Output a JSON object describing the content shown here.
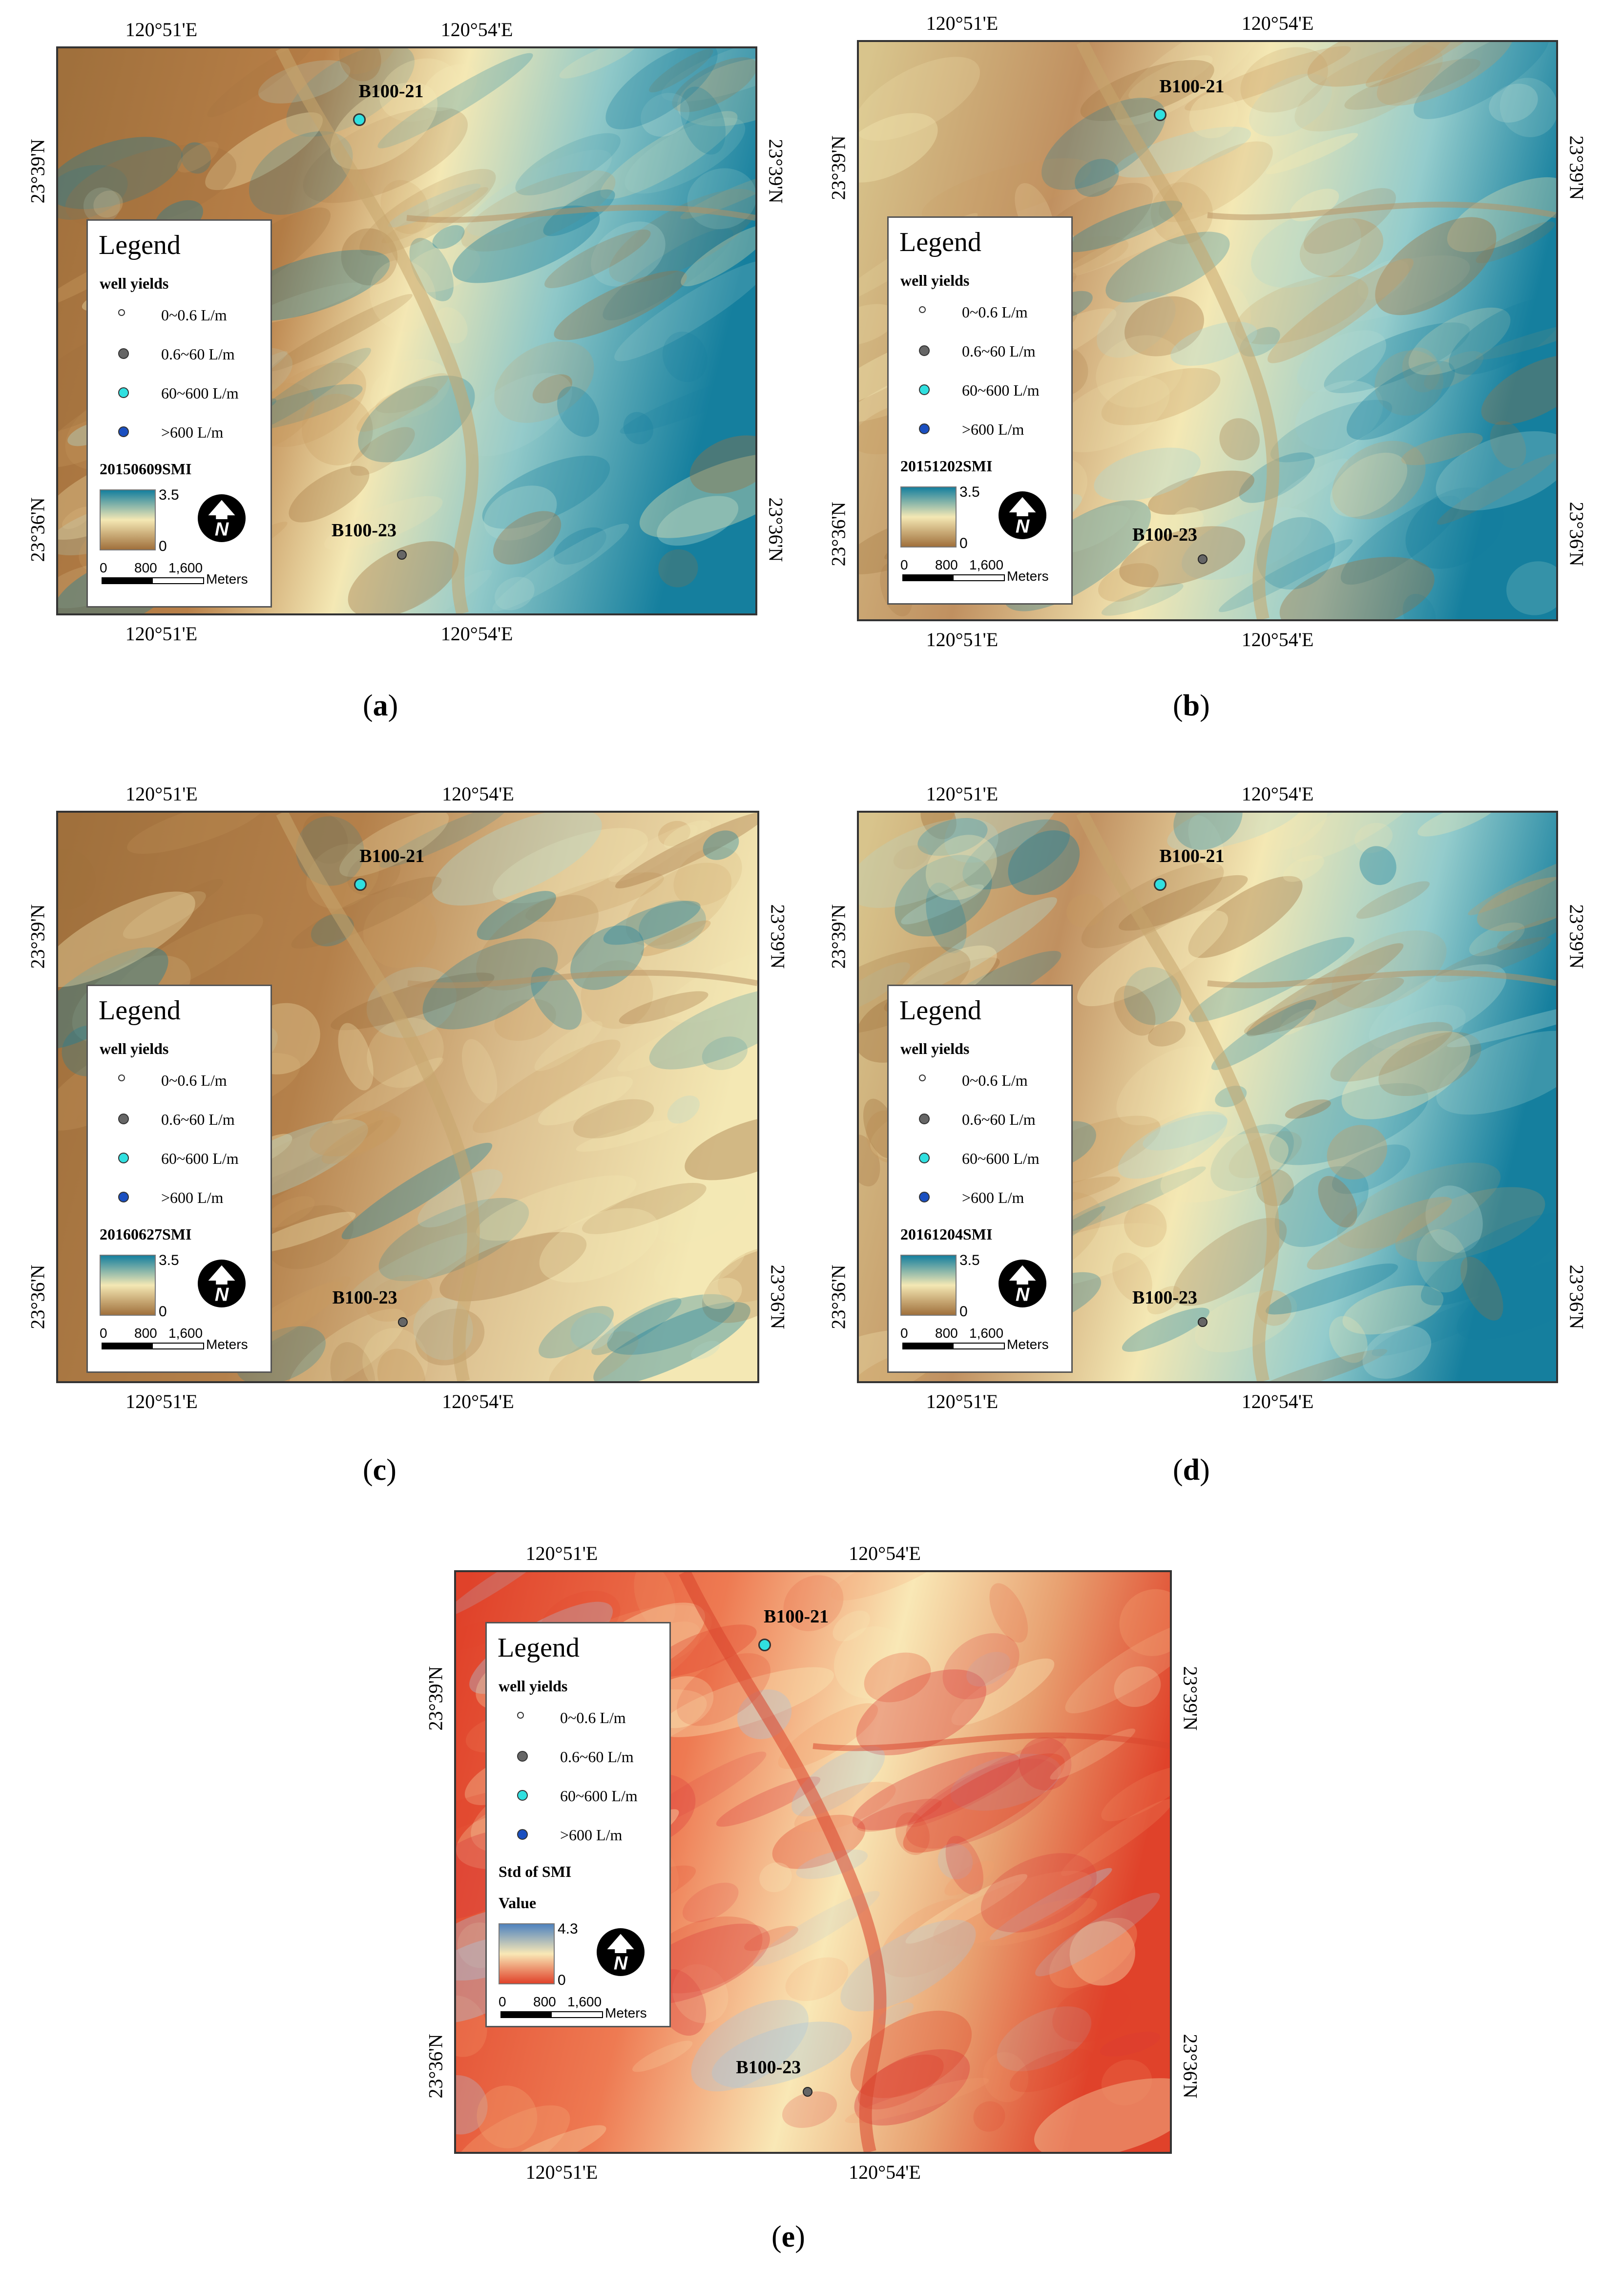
{
  "coordinates": {
    "lon_left": "120°51'E",
    "lon_right": "120°54'E",
    "lat_top": "23°39'N",
    "lat_bottom": "23°36'N"
  },
  "wells": {
    "north": {
      "name": "B100-21",
      "yield_class": "60~600 L/m"
    },
    "south": {
      "name": "B100-23",
      "yield_class": "0.6~60 L/m"
    }
  },
  "legend": {
    "title": "Legend",
    "subtitle": "well yields",
    "items": [
      {
        "label": "0~0.6 L/m",
        "color": "#ffffff"
      },
      {
        "label": "0.6~60 L/m",
        "color": "#666666"
      },
      {
        "label": "60~600 L/m",
        "color": "#30e0e0"
      },
      {
        "label": ">600 L/m",
        "color": "#1a4fc0"
      }
    ]
  },
  "scale": {
    "zero": "0",
    "mid": "800",
    "end": "1,600",
    "unit": "Meters"
  },
  "colors": {
    "smi_low": "#a0703c",
    "smi_mid": "#f4e8b4",
    "smi_high": "#157f9e",
    "std_low": "#e0422a",
    "std_mid": "#f9e8b6",
    "std_high": "#4f83bf"
  },
  "panels": [
    {
      "id": "a",
      "caption": "a",
      "layer_title": "20150609SMI",
      "value_label": "",
      "max": "3.5",
      "min": "0",
      "palette": "smi",
      "wetness": "dry-west"
    },
    {
      "id": "b",
      "caption": "b",
      "layer_title": "20151202SMI",
      "value_label": "",
      "max": "3.5",
      "min": "0",
      "palette": "smi",
      "wetness": "moderate"
    },
    {
      "id": "c",
      "caption": "c",
      "layer_title": "20160627SMI",
      "value_label": "",
      "max": "3.5",
      "min": "0",
      "palette": "smi",
      "wetness": "dry"
    },
    {
      "id": "d",
      "caption": "d",
      "layer_title": "20161204SMI",
      "value_label": "",
      "max": "3.5",
      "min": "0",
      "palette": "smi",
      "wetness": "moderate"
    },
    {
      "id": "e",
      "caption": "e",
      "layer_title": "Std of SMI",
      "value_label": "Value",
      "max": "4.3",
      "min": "0",
      "palette": "std",
      "wetness": "std"
    }
  ]
}
